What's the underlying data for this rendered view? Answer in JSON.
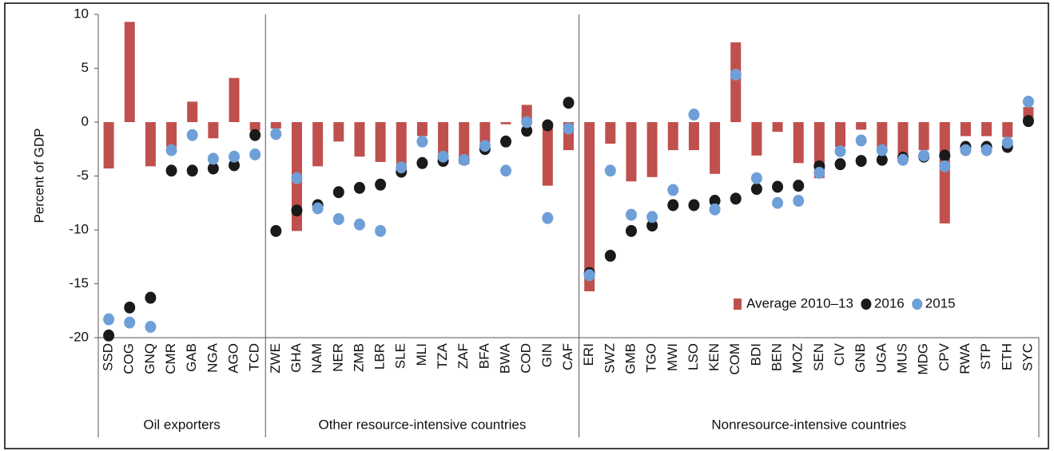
{
  "chart_data": {
    "type": "bar",
    "y_label": "Percent of GDP",
    "ylim": [
      -20,
      10
    ],
    "yticks": [
      10,
      5,
      0,
      -5,
      -10,
      -15,
      -20
    ],
    "groups": [
      {
        "name": "Oil exporters",
        "categories": [
          "SSD",
          "COG",
          "GNQ",
          "CMR",
          "GAB",
          "NGA",
          "AGO",
          "TCD"
        ]
      },
      {
        "name": "Other resource-intensive countries",
        "categories": [
          "ZWE",
          "GHA",
          "NAM",
          "NER",
          "ZMB",
          "LBR",
          "SLE",
          "MLI",
          "TZA",
          "ZAF",
          "BFA",
          "BWA",
          "COD",
          "GIN",
          "CAF"
        ]
      },
      {
        "name": "Nonresource-intensive countries",
        "categories": [
          "ERI",
          "SWZ",
          "GMB",
          "TGO",
          "MWI",
          "LSO",
          "KEN",
          "COM",
          "BDI",
          "BEN",
          "MOZ",
          "SEN",
          "CIV",
          "GNB",
          "UGA",
          "MUS",
          "MDG",
          "CPV",
          "RWA",
          "STP",
          "ETH",
          "SYC"
        ]
      }
    ],
    "series": [
      {
        "name": "Average 2010–13",
        "mark": "bar",
        "color": "#c0504d",
        "values": [
          -4.3,
          9.3,
          -4.1,
          -2.3,
          1.9,
          -1.5,
          4.1,
          -0.8,
          -0.6,
          -10.1,
          -4.1,
          -1.8,
          -3.2,
          -3.7,
          -3.9,
          -1.3,
          -3.4,
          -3.9,
          -1.9,
          -0.2,
          1.6,
          -5.9,
          -2.6,
          -15.7,
          -2.0,
          -5.5,
          -5.1,
          -2.6,
          -2.6,
          -4.8,
          7.4,
          -3.1,
          -0.9,
          -3.8,
          -5.2,
          -2.3,
          -0.7,
          -2.7,
          -3.2,
          -2.6,
          -9.4,
          -1.3,
          -1.3,
          -1.4,
          1.4
        ]
      },
      {
        "name": "2016",
        "mark": "dot",
        "color": "#1a1a1a",
        "values": [
          -19.8,
          -17.2,
          -16.3,
          -4.5,
          -4.5,
          -4.3,
          -4.0,
          -1.2,
          -10.1,
          -8.2,
          -7.7,
          -6.5,
          -6.1,
          -5.8,
          -4.6,
          -3.8,
          -3.6,
          -3.5,
          -2.5,
          -1.8,
          -0.8,
          -0.3,
          1.8,
          -14.0,
          -12.4,
          -10.1,
          -9.6,
          -7.7,
          -7.7,
          -7.3,
          -7.1,
          -6.2,
          -6.0,
          -5.9,
          -4.1,
          -3.9,
          -3.6,
          -3.5,
          -3.3,
          -3.2,
          -3.1,
          -2.3,
          -2.3,
          -2.3,
          0.1
        ]
      },
      {
        "name": "2015",
        "mark": "dot",
        "color": "#6f9fd8",
        "values": [
          -18.3,
          -18.6,
          -19.0,
          -2.6,
          -1.2,
          -3.4,
          -3.2,
          -3.0,
          -1.1,
          -5.2,
          -8.0,
          -9.0,
          -9.5,
          -10.1,
          -4.2,
          -1.8,
          -3.2,
          -3.5,
          -2.2,
          -4.5,
          0.0,
          -8.9,
          -0.6,
          -14.2,
          -4.5,
          -8.6,
          -8.8,
          -6.3,
          0.7,
          -8.1,
          4.4,
          -5.2,
          -7.5,
          -7.3,
          -4.7,
          -2.7,
          -1.7,
          -2.6,
          -3.5,
          -3.1,
          -4.1,
          -2.6,
          -2.6,
          -1.9,
          1.9
        ]
      }
    ]
  }
}
